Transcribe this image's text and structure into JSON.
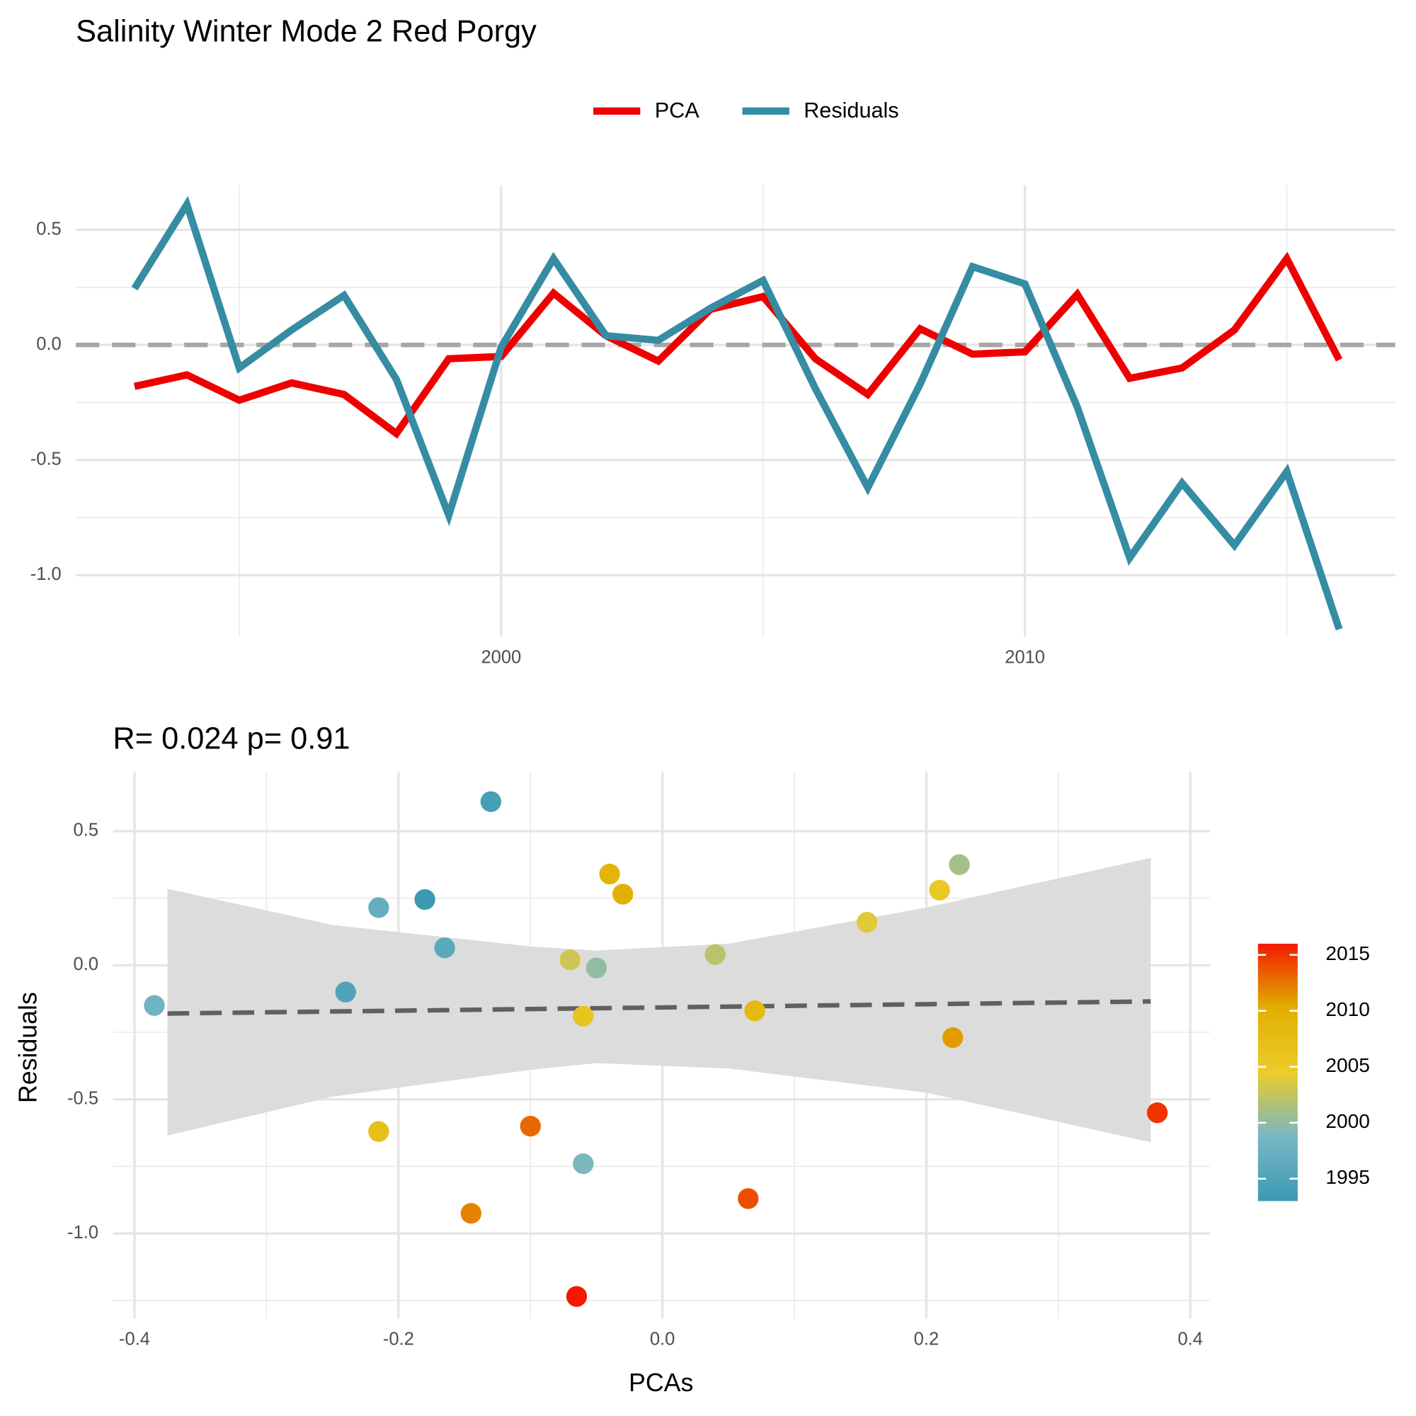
{
  "chart_data": [
    {
      "type": "line",
      "title": "Salinity Winter Mode 2  Red Porgy",
      "x": [
        1993,
        1994,
        1995,
        1996,
        1997,
        1998,
        1999,
        2000,
        2001,
        2002,
        2003,
        2004,
        2005,
        2006,
        2007,
        2008,
        2009,
        2010,
        2011,
        2012,
        2013,
        2014,
        2015,
        2016
      ],
      "series": [
        {
          "name": "PCA",
          "color": "#ee0000",
          "values": [
            -0.18,
            -0.13,
            -0.24,
            -0.165,
            -0.215,
            -0.385,
            -0.06,
            -0.05,
            0.225,
            0.04,
            -0.07,
            0.155,
            0.21,
            -0.06,
            -0.215,
            0.07,
            -0.04,
            -0.03,
            0.22,
            -0.145,
            -0.1,
            0.065,
            0.375,
            -0.065
          ]
        },
        {
          "name": "Residuals",
          "color": "#358ca3",
          "values": [
            0.245,
            0.61,
            -0.1,
            0.065,
            0.215,
            -0.15,
            -0.74,
            -0.01,
            0.375,
            0.04,
            0.02,
            0.16,
            0.28,
            -0.19,
            -0.62,
            -0.17,
            0.34,
            0.265,
            -0.27,
            -0.925,
            -0.6,
            -0.87,
            -0.55,
            -1.235
          ]
        }
      ],
      "xlim": [
        1991.88,
        2017.07
      ],
      "ylim": [
        -1.267,
        0.694
      ],
      "xticks": [
        2000,
        2010
      ],
      "xminor": [
        1995,
        2005,
        2015
      ],
      "yticks": [
        0.5,
        {
          "value": 0,
          "label": "0.0"
        },
        -0.5,
        {
          "value": -1,
          "label": "-1.0"
        }
      ],
      "yminor": [
        0.25,
        -0.25,
        -0.75
      ],
      "hline": 0,
      "hline_color": "#a6a6a6",
      "legend": "top"
    },
    {
      "type": "scatter",
      "title": "R= 0.024  p= 0.91",
      "xlabel": "PCAs",
      "ylabel": "Residuals",
      "x": [
        -0.18,
        -0.13,
        -0.24,
        -0.165,
        -0.215,
        -0.385,
        -0.06,
        -0.05,
        0.225,
        0.04,
        -0.07,
        0.155,
        0.21,
        -0.06,
        -0.215,
        0.07,
        -0.04,
        -0.03,
        0.22,
        -0.145,
        -0.1,
        0.065,
        0.375,
        -0.065
      ],
      "y": [
        0.245,
        0.61,
        -0.1,
        0.065,
        0.215,
        -0.15,
        -0.74,
        -0.01,
        0.375,
        0.04,
        0.02,
        0.16,
        0.28,
        -0.19,
        -0.62,
        -0.17,
        0.34,
        0.265,
        -0.27,
        -0.925,
        -0.6,
        -0.87,
        -0.55,
        -1.235
      ],
      "year": [
        1993,
        1994,
        1995,
        1996,
        1997,
        1998,
        1999,
        2000,
        2001,
        2002,
        2003,
        2004,
        2005,
        2006,
        2007,
        2008,
        2009,
        2010,
        2011,
        2012,
        2013,
        2014,
        2015,
        2016
      ],
      "colorscale": {
        "colors": [
          "#3b9ab2",
          "#78b7c5",
          "#ebcc2a",
          "#e1af00",
          "#f21a00"
        ],
        "lim": [
          1993,
          2016
        ],
        "ticks": [
          1995,
          2000,
          2005,
          2010,
          2015
        ]
      },
      "xlim": [
        -0.4164,
        0.415
      ],
      "ylim": [
        -1.317,
        0.72
      ],
      "xticks": [
        -0.4,
        -0.2,
        {
          "value": 0,
          "label": "0.0"
        },
        0.2,
        0.4
      ],
      "xminor": [
        -0.3,
        -0.1,
        0.1,
        0.3
      ],
      "yticks": [
        0.5,
        {
          "value": 0,
          "label": "0.0"
        },
        -0.5,
        {
          "value": -1,
          "label": "-1.0"
        }
      ],
      "yminor": [
        0.25,
        -0.25,
        -0.75,
        -1.25
      ],
      "fit": {
        "x": [
          -0.375,
          0.37
        ],
        "y": [
          -0.18,
          -0.135
        ],
        "color": "#606060"
      },
      "band": {
        "x": [
          -0.375,
          -0.25,
          -0.1,
          -0.05,
          0.05,
          0.2,
          0.37
        ],
        "upper": [
          0.285,
          0.15,
          0.07,
          0.055,
          0.08,
          0.215,
          0.4
        ],
        "lower": [
          -0.635,
          -0.49,
          -0.39,
          -0.365,
          -0.385,
          -0.475,
          -0.66
        ],
        "color": "#dcdcdc"
      }
    }
  ]
}
